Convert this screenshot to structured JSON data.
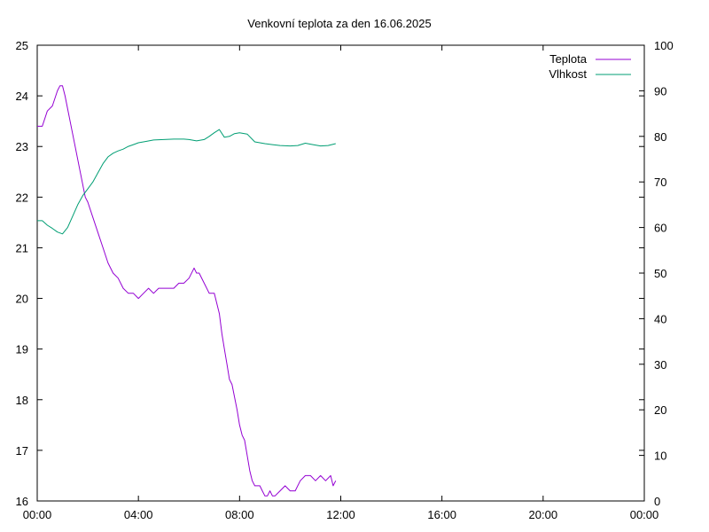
{
  "chart_data": {
    "type": "line",
    "title": "Venkovní teplota za den 16.06.2025",
    "xlabel": "",
    "ylabel": "",
    "y2label": "",
    "x_range_hours": [
      0,
      24
    ],
    "x_tick_labels": [
      "00:00",
      "04:00",
      "08:00",
      "12:00",
      "16:00",
      "20:00",
      "00:00"
    ],
    "x_tick_hours": [
      0,
      4,
      8,
      12,
      16,
      20,
      24
    ],
    "ylim": [
      16,
      25
    ],
    "y_ticks": [
      "16",
      "17",
      "18",
      "19",
      "20",
      "21",
      "22",
      "23",
      "24",
      "25"
    ],
    "y2lim": [
      0,
      100
    ],
    "y2_ticks": [
      "0",
      "10",
      "20",
      "30",
      "40",
      "50",
      "60",
      "70",
      "80",
      "90",
      "100"
    ],
    "grid": false,
    "legend_position": "top-right",
    "series": [
      {
        "name": "Teplota",
        "axis": "left",
        "color": "#9400d3",
        "x_hours": [
          0,
          0.2,
          0.4,
          0.6,
          0.8,
          0.9,
          1.0,
          1.1,
          1.3,
          1.5,
          1.7,
          1.9,
          2.0,
          2.2,
          2.4,
          2.6,
          2.8,
          3.0,
          3.2,
          3.4,
          3.6,
          3.8,
          4.0,
          4.2,
          4.4,
          4.6,
          4.8,
          5.0,
          5.2,
          5.4,
          5.6,
          5.8,
          6.0,
          6.2,
          6.3,
          6.4,
          6.6,
          6.8,
          7.0,
          7.2,
          7.3,
          7.4,
          7.5,
          7.6,
          7.7,
          7.9,
          8.0,
          8.1,
          8.2,
          8.3,
          8.4,
          8.5,
          8.6,
          8.7,
          8.8,
          8.9,
          9.0,
          9.1,
          9.2,
          9.3,
          9.4,
          9.6,
          9.8,
          10.0,
          10.2,
          10.4,
          10.6,
          10.8,
          11.0,
          11.2,
          11.4,
          11.6,
          11.7,
          11.8
        ],
        "values": [
          23.4,
          23.4,
          23.7,
          23.8,
          24.1,
          24.2,
          24.2,
          24.0,
          23.5,
          23.0,
          22.5,
          22.0,
          21.9,
          21.6,
          21.3,
          21.0,
          20.7,
          20.5,
          20.4,
          20.2,
          20.1,
          20.1,
          20.0,
          20.1,
          20.2,
          20.1,
          20.2,
          20.2,
          20.2,
          20.2,
          20.3,
          20.3,
          20.4,
          20.6,
          20.5,
          20.5,
          20.3,
          20.1,
          20.1,
          19.7,
          19.3,
          19.0,
          18.7,
          18.4,
          18.3,
          17.8,
          17.5,
          17.3,
          17.2,
          16.9,
          16.6,
          16.4,
          16.3,
          16.3,
          16.3,
          16.2,
          16.1,
          16.1,
          16.2,
          16.1,
          16.1,
          16.2,
          16.3,
          16.2,
          16.2,
          16.4,
          16.5,
          16.5,
          16.4,
          16.5,
          16.4,
          16.5,
          16.3,
          16.4
        ]
      },
      {
        "name": "Vlhkost",
        "axis": "right",
        "color": "#009e73",
        "x_hours": [
          0,
          0.2,
          0.4,
          0.6,
          0.8,
          1.0,
          1.2,
          1.4,
          1.6,
          1.8,
          2.0,
          2.2,
          2.4,
          2.6,
          2.8,
          3.0,
          3.2,
          3.4,
          3.6,
          3.8,
          4.0,
          4.3,
          4.6,
          5.0,
          5.4,
          5.8,
          6.0,
          6.3,
          6.6,
          6.8,
          7.0,
          7.2,
          7.4,
          7.6,
          7.8,
          8.0,
          8.3,
          8.6,
          8.8,
          9.0,
          9.3,
          9.6,
          10.0,
          10.3,
          10.6,
          10.9,
          11.2,
          11.5,
          11.8
        ],
        "values": [
          61.5,
          61.5,
          60.5,
          59.8,
          59.0,
          58.6,
          60.0,
          62.5,
          65.0,
          67.0,
          68.5,
          70.0,
          72.0,
          74.0,
          75.5,
          76.3,
          76.8,
          77.2,
          77.8,
          78.2,
          78.6,
          78.9,
          79.2,
          79.3,
          79.4,
          79.4,
          79.3,
          79.0,
          79.3,
          80.0,
          80.8,
          81.5,
          79.8,
          80.0,
          80.6,
          80.8,
          80.5,
          78.8,
          78.6,
          78.4,
          78.2,
          78.0,
          77.9,
          78.0,
          78.5,
          78.2,
          77.9,
          78.0,
          78.4
        ]
      }
    ]
  }
}
